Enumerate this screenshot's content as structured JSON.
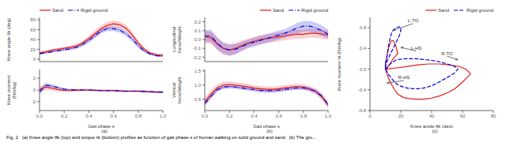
{
  "caption": "Fig. 2   (a) Knee angle θk (top) and torque τk (bottom) profiles as function of gait phase s of human walking on solid ground and sand.  (b) The gro...",
  "chart_data": [
    {
      "type": "line",
      "ylabel": "Knee angle θk (deg)",
      "x": [
        0.0,
        0.05,
        0.1,
        0.15,
        0.2,
        0.25,
        0.3,
        0.35,
        0.4,
        0.45,
        0.5,
        0.55,
        0.6,
        0.65,
        0.7,
        0.75,
        0.8,
        0.85,
        0.9,
        0.95,
        1.0
      ],
      "xlim": [
        0,
        1
      ],
      "xticks": [
        {
          "value": 0,
          "label": "0.0"
        },
        0.2,
        0.4,
        0.6,
        0.8,
        {
          "value": 1,
          "label": "1.0"
        }
      ],
      "ylim": [
        -5,
        85
      ],
      "yticks": [
        0,
        20,
        40,
        60,
        80
      ],
      "tick_labels": "y",
      "grid": false,
      "legend": "upper left",
      "series": [
        {
          "name": "Sand",
          "color": "#e41a1c",
          "line_style": "solid",
          "values": [
            13,
            15,
            18,
            20,
            22,
            24,
            27,
            33,
            42,
            52,
            62,
            69,
            72,
            70,
            63,
            50,
            33,
            20,
            12,
            9,
            8
          ],
          "std": [
            3,
            3,
            3,
            3,
            3,
            4,
            4,
            5,
            6,
            7,
            7,
            7,
            7,
            7,
            7,
            6,
            5,
            4,
            3,
            3,
            3
          ]
        },
        {
          "name": "Rigid ground",
          "color": "#0000dd",
          "line_style": "dashdot",
          "values": [
            11,
            13,
            15,
            17,
            19,
            21,
            24,
            30,
            38,
            48,
            57,
            62,
            62,
            59,
            52,
            41,
            27,
            16,
            10,
            7,
            6
          ],
          "std": [
            2,
            2,
            2,
            2,
            2,
            3,
            3,
            4,
            5,
            5,
            5,
            5,
            5,
            5,
            5,
            5,
            4,
            3,
            2,
            2,
            2
          ]
        }
      ]
    },
    {
      "type": "line",
      "title": "(a)",
      "ylabel": "Knee moment (Nm/kg)",
      "xlabel": "Gait phase s",
      "x": [
        0.0,
        0.05,
        0.1,
        0.15,
        0.2,
        0.25,
        0.3,
        0.35,
        0.4,
        0.45,
        0.5,
        0.55,
        0.6,
        0.65,
        0.7,
        0.75,
        0.8,
        0.85,
        0.9,
        0.95,
        1.0
      ],
      "xlim": [
        0,
        1
      ],
      "xticks": [
        {
          "value": 0,
          "label": "0.0"
        },
        0.2,
        0.4,
        0.6,
        0.8,
        {
          "value": 1,
          "label": "1.0"
        }
      ],
      "ylim": [
        -3.5,
        3.5
      ],
      "yticks": [
        -2,
        0,
        2
      ],
      "grid": false,
      "series": [
        {
          "color": "#e41a1c",
          "line_style": "solid",
          "values": [
            0.1,
            0.5,
            0.3,
            0.05,
            -0.05,
            -0.1,
            -0.05,
            0.0,
            0.0,
            -0.05,
            -0.1,
            -0.1,
            -0.1,
            -0.15,
            -0.2,
            -0.2,
            -0.2,
            -0.25,
            -0.3,
            -0.35,
            -0.35
          ],
          "std": [
            0.5,
            0.5,
            0.4,
            0.3,
            0.25,
            0.2,
            0.2,
            0.2,
            0.2,
            0.2,
            0.2,
            0.2,
            0.2,
            0.2,
            0.2,
            0.2,
            0.2,
            0.2,
            0.2,
            0.2,
            0.2
          ]
        },
        {
          "color": "#0000dd",
          "line_style": "dashdot",
          "values": [
            -0.3,
            0.8,
            0.7,
            0.4,
            0.15,
            0.05,
            0.02,
            0.0,
            0.0,
            -0.05,
            -0.1,
            -0.1,
            -0.1,
            -0.15,
            -0.2,
            -0.2,
            -0.2,
            -0.25,
            -0.3,
            -0.35,
            -0.35
          ],
          "std": [
            0.5,
            0.4,
            0.3,
            0.25,
            0.2,
            0.15,
            0.15,
            0.15,
            0.15,
            0.15,
            0.15,
            0.15,
            0.15,
            0.15,
            0.15,
            0.15,
            0.15,
            0.15,
            0.15,
            0.15,
            0.15
          ]
        }
      ]
    },
    {
      "type": "line",
      "ylabel": "Longitudinal force/Weight",
      "x": [
        0.0,
        0.05,
        0.1,
        0.15,
        0.2,
        0.25,
        0.3,
        0.35,
        0.4,
        0.45,
        0.5,
        0.55,
        0.6,
        0.65,
        0.7,
        0.75,
        0.8,
        0.85,
        0.9,
        0.95,
        1.0
      ],
      "xlim": [
        0,
        1
      ],
      "xticks": [
        {
          "value": 0,
          "label": "0.0"
        },
        0.2,
        0.4,
        0.6,
        0.8,
        {
          "value": 1,
          "label": "1.0"
        }
      ],
      "ylim": [
        -0.25,
        0.25
      ],
      "yticks": [
        -0.2,
        -0.1,
        {
          "value": 0,
          "label": "0.0"
        },
        0.1,
        0.2
      ],
      "tick_labels": "y",
      "grid": false,
      "legend": "upper right",
      "series": [
        {
          "name": "Sand",
          "color": "#e41a1c",
          "line_style": "solid",
          "values": [
            0.03,
            0.02,
            -0.05,
            -0.1,
            -0.12,
            -0.1,
            -0.07,
            -0.04,
            -0.02,
            0.0,
            0.01,
            0.02,
            0.03,
            0.04,
            0.05,
            0.06,
            0.06,
            0.07,
            0.07,
            0.06,
            0.05
          ],
          "std": [
            0.07,
            0.07,
            0.07,
            0.07,
            0.07,
            0.06,
            0.06,
            0.05,
            0.05,
            0.05,
            0.05,
            0.05,
            0.05,
            0.05,
            0.05,
            0.05,
            0.05,
            0.05,
            0.05,
            0.05,
            0.05
          ]
        },
        {
          "name": "Rigid ground",
          "color": "#0000dd",
          "line_style": "dashdot",
          "values": [
            0.04,
            0.04,
            -0.04,
            -0.1,
            -0.12,
            -0.11,
            -0.08,
            -0.05,
            -0.03,
            -0.01,
            0.01,
            0.03,
            0.05,
            0.07,
            0.1,
            0.13,
            0.15,
            0.15,
            0.13,
            0.1,
            0.06
          ],
          "std": [
            0.07,
            0.07,
            0.07,
            0.06,
            0.06,
            0.06,
            0.05,
            0.05,
            0.05,
            0.05,
            0.05,
            0.05,
            0.05,
            0.05,
            0.05,
            0.06,
            0.06,
            0.06,
            0.06,
            0.06,
            0.05
          ]
        }
      ]
    },
    {
      "type": "line",
      "title": "(b)",
      "ylabel": "Vertical force/Weight",
      "xlabel": "Gait phase s",
      "x": [
        0.0,
        0.05,
        0.1,
        0.15,
        0.2,
        0.25,
        0.3,
        0.35,
        0.4,
        0.45,
        0.5,
        0.55,
        0.6,
        0.65,
        0.7,
        0.75,
        0.8,
        0.85,
        0.9,
        0.95,
        1.0
      ],
      "xlim": [
        0,
        1
      ],
      "xticks": [
        {
          "value": 0,
          "label": "0.0"
        },
        0.2,
        0.4,
        0.6,
        0.8,
        {
          "value": 1,
          "label": "1.0"
        }
      ],
      "ylim": [
        0.1,
        1.55
      ],
      "yticks": [
        0.5,
        {
          "value": 1,
          "label": "1.0"
        },
        1.5
      ],
      "grid": false,
      "series": [
        {
          "color": "#e41a1c",
          "line_style": "solid",
          "values": [
            0.42,
            0.68,
            0.9,
            1.0,
            1.02,
            1.0,
            0.97,
            0.94,
            0.9,
            0.87,
            0.85,
            0.85,
            0.87,
            0.9,
            0.93,
            0.95,
            0.93,
            0.87,
            0.77,
            0.58,
            0.3
          ],
          "std": [
            0.15,
            0.14,
            0.12,
            0.11,
            0.11,
            0.1,
            0.1,
            0.1,
            0.1,
            0.1,
            0.1,
            0.1,
            0.1,
            0.1,
            0.1,
            0.1,
            0.1,
            0.1,
            0.11,
            0.12,
            0.12
          ]
        },
        {
          "color": "#0000dd",
          "line_style": "dashdot",
          "values": [
            0.35,
            0.6,
            0.83,
            0.93,
            0.95,
            0.93,
            0.9,
            0.87,
            0.84,
            0.81,
            0.8,
            0.8,
            0.82,
            0.85,
            0.88,
            0.9,
            0.9,
            0.85,
            0.78,
            0.6,
            0.3
          ],
          "std": [
            0.08,
            0.08,
            0.07,
            0.07,
            0.07,
            0.07,
            0.07,
            0.07,
            0.07,
            0.07,
            0.07,
            0.07,
            0.07,
            0.07,
            0.07,
            0.07,
            0.07,
            0.07,
            0.07,
            0.07,
            0.07
          ]
        }
      ]
    },
    {
      "type": "line",
      "title": "(c)",
      "xlabel": "Knee angle θk (deg)",
      "ylabel": "Knee moment τk (Nm/kg)",
      "xlim": [
        0,
        80
      ],
      "xticks": [
        0,
        20,
        40,
        60,
        80
      ],
      "ylim": [
        -0.8,
        1.0
      ],
      "yticks": [
        -0.8,
        -0.4,
        {
          "value": 0,
          "label": "0.0"
        },
        0.4,
        0.8
      ],
      "grid": false,
      "legend": "upper right",
      "series": [
        {
          "name": "Sand",
          "color": "#e41a1c",
          "line_style": "solid",
          "x": [
            10,
            10,
            11,
            12,
            13,
            14,
            15,
            16,
            17,
            18,
            15,
            13,
            11,
            10,
            10,
            11,
            12,
            14,
            16,
            18,
            20,
            22,
            25,
            30,
            35,
            40,
            45,
            50,
            55,
            60,
            65,
            65,
            64,
            62,
            58,
            52,
            45,
            38,
            30,
            22,
            16,
            13,
            11,
            10
          ],
          "values": [
            0.0,
            0.1,
            0.25,
            0.4,
            0.5,
            0.55,
            0.55,
            0.5,
            0.42,
            0.3,
            0.2,
            0.1,
            0.02,
            0.0,
            0.0,
            -0.08,
            -0.18,
            -0.3,
            -0.4,
            -0.48,
            -0.52,
            -0.55,
            -0.57,
            -0.58,
            -0.58,
            -0.56,
            -0.52,
            -0.46,
            -0.38,
            -0.25,
            -0.1,
            -0.08,
            -0.05,
            0.0,
            0.05,
            0.08,
            0.1,
            0.1,
            0.08,
            0.04,
            0.02,
            0.01,
            0.0,
            0.0
          ]
        },
        {
          "name": "Rigid ground",
          "color": "#0000dd",
          "line_style": "dashed",
          "x": [
            10,
            10,
            11,
            12,
            13,
            14,
            15,
            17,
            19,
            20,
            20,
            19,
            17,
            15,
            13,
            11,
            10,
            10,
            11,
            12,
            14,
            16,
            18,
            20,
            22,
            25,
            28,
            31,
            34,
            37,
            40,
            43,
            46,
            49,
            52,
            55,
            57,
            55,
            50,
            44,
            37,
            30,
            23,
            17,
            13,
            10
          ],
          "values": [
            0.0,
            0.1,
            0.25,
            0.45,
            0.6,
            0.7,
            0.75,
            0.8,
            0.82,
            0.8,
            0.75,
            0.65,
            0.52,
            0.4,
            0.28,
            0.15,
            0.05,
            0.0,
            -0.05,
            -0.1,
            -0.18,
            -0.25,
            -0.3,
            -0.33,
            -0.35,
            -0.37,
            -0.38,
            -0.38,
            -0.37,
            -0.35,
            -0.32,
            -0.28,
            -0.23,
            -0.18,
            -0.13,
            -0.07,
            0.0,
            0.05,
            0.1,
            0.15,
            0.18,
            0.2,
            0.2,
            0.18,
            0.1,
            0.0
          ]
        }
      ],
      "annotations": [
        {
          "text": "L-TO",
          "x": 28,
          "y": 0.88,
          "target": [
            15,
            0.75
          ]
        },
        {
          "text": "L-HS",
          "x": 30,
          "y": 0.35,
          "target": [
            20,
            0.42
          ]
        },
        {
          "text": "R-HS",
          "x": 22,
          "y": -0.22,
          "target": [
            11,
            -0.27
          ]
        },
        {
          "text": "R-TO",
          "x": 50,
          "y": 0.25,
          "target": [
            57,
            0.18
          ]
        }
      ]
    }
  ]
}
